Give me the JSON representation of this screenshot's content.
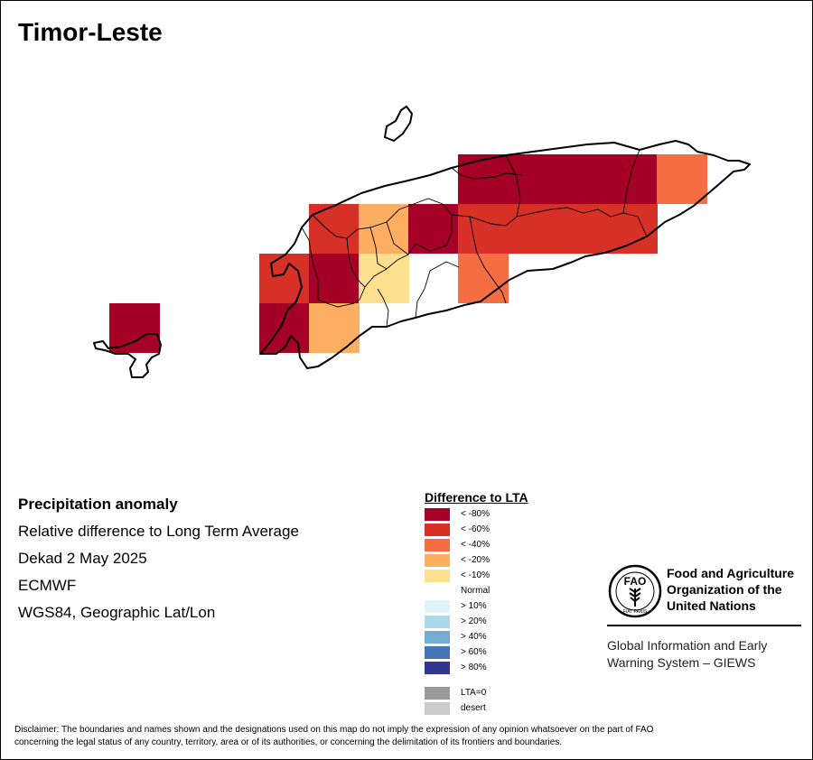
{
  "map": {
    "title": "Timor-Leste",
    "colors": {
      "lt80": "#a50026",
      "lt60": "#d73027",
      "lt40": "#f46d43",
      "lt20": "#fdae61",
      "lt10": "#fee090",
      "normal": "#ffffff",
      "gt10": "#e0f3f8",
      "gt20": "#abd9e9",
      "gt40": "#74add1",
      "gt60": "#4575b4",
      "gt80": "#313695",
      "lta0": "#9a9a9a",
      "desert": "#cccccc"
    }
  },
  "info": {
    "heading": "Precipitation anomaly",
    "subtitle": "Relative difference to Long Term Average",
    "period": "Dekad 2 May 2025",
    "source": "ECMWF",
    "projection": "WGS84, Geographic Lat/Lon"
  },
  "legend": {
    "title": "Difference to LTA",
    "items": [
      {
        "label": "< -80%",
        "color": "#a50026"
      },
      {
        "label": "< -60%",
        "color": "#d73027"
      },
      {
        "label": "< -40%",
        "color": "#f46d43"
      },
      {
        "label": "< -20%",
        "color": "#fdae61"
      },
      {
        "label": "< -10%",
        "color": "#fee090"
      },
      {
        "label": "Normal",
        "color": "#ffffff"
      },
      {
        "label": "> 10%",
        "color": "#e0f3f8"
      },
      {
        "label": "> 20%",
        "color": "#abd9e9"
      },
      {
        "label": "> 40%",
        "color": "#74add1"
      },
      {
        "label": "> 60%",
        "color": "#4575b4"
      },
      {
        "label": "> 80%",
        "color": "#313695"
      }
    ],
    "extra": [
      {
        "label": "LTA=0",
        "color": "#9a9a9a"
      },
      {
        "label": "desert",
        "color": "#cccccc"
      }
    ]
  },
  "fao": {
    "name_line1": "Food and Agriculture",
    "name_line2": "Organization of the",
    "name_line3": "United Nations",
    "logo_text": "FAO",
    "logo_motto": "FIAT PANIS",
    "giews_line1": "Global Information and Early",
    "giews_line2": "Warning System – GIEWS"
  },
  "disclaimer": {
    "line1": "Disclaimer: The boundaries and names shown and the designations used on this map do not imply the expression of any opinion whatsoever on the part of FAO",
    "line2": "concerning the legal status of any country, territory, area or of its authorities, or concerning the delimitation of its frontiers and boundaries."
  }
}
